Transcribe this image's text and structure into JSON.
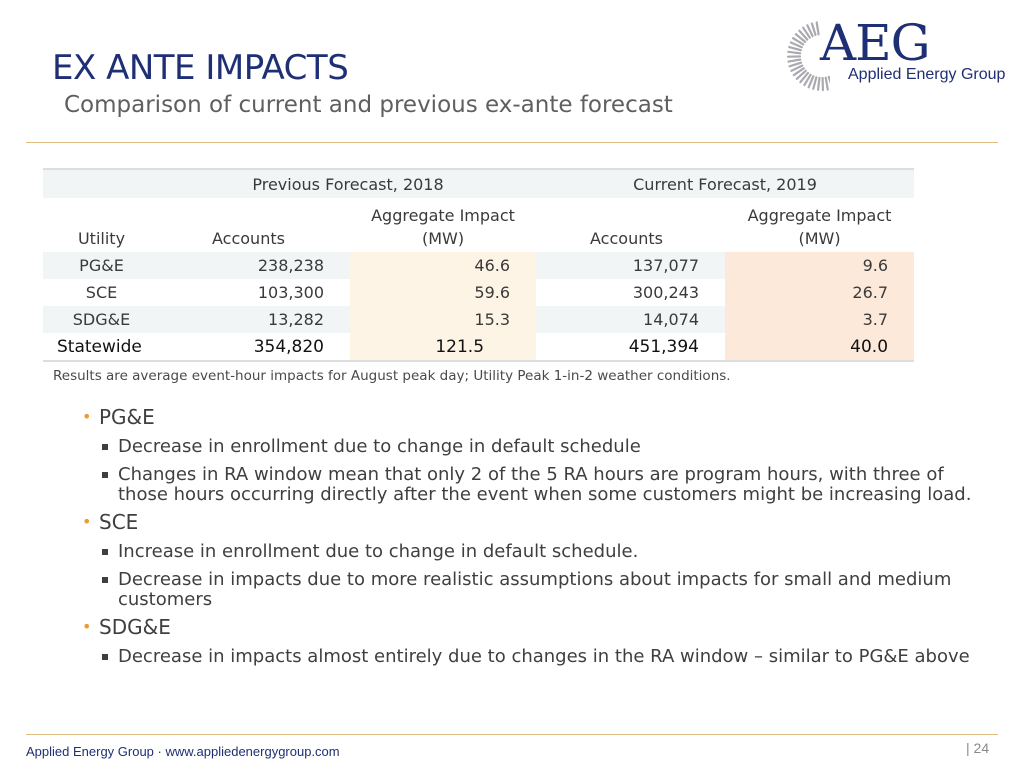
{
  "slide": {
    "title": "EX ANTE IMPACTS",
    "subtitle": "Comparison of current and previous ex-ante forecast"
  },
  "logo": {
    "letters": "AEG",
    "company": "Applied Energy Group",
    "colors": {
      "primary": "#1f2f75",
      "accent": "#a9aab0"
    }
  },
  "table": {
    "group_headers": [
      "Previous Forecast, 2018",
      "Current Forecast, 2019"
    ],
    "column_headers": {
      "utility": "Utility",
      "accounts_prev": "Accounts",
      "impact_prev_line1": "Aggregate Impact",
      "impact_prev_line2": "(MW)",
      "accounts_curr": "Accounts",
      "impact_curr_line1": "Aggregate Impact",
      "impact_curr_line2": "(MW)"
    },
    "rows": [
      {
        "utility": "PG&E",
        "accounts_prev": "238,238",
        "impact_prev": "46.6",
        "accounts_curr": "137,077",
        "impact_curr": "9.6"
      },
      {
        "utility": "SCE",
        "accounts_prev": "103,300",
        "impact_prev": "59.6",
        "accounts_curr": "300,243",
        "impact_curr": "26.7"
      },
      {
        "utility": "SDG&E",
        "accounts_prev": "13,282",
        "impact_prev": "15.3",
        "accounts_curr": "14,074",
        "impact_curr": "3.7"
      }
    ],
    "total": {
      "utility": "Statewide",
      "accounts_prev": "354,820",
      "impact_prev": "121.5",
      "accounts_curr": "451,394",
      "impact_curr": "40.0"
    },
    "colors": {
      "shade": "#f2f5f5",
      "impact_prev_fill": "#fef4e6",
      "impact_curr_fill": "#fde9da"
    }
  },
  "note": "Results are average event-hour impacts for August peak day; Utility Peak 1-in-2 weather conditions.",
  "bullets": [
    {
      "label": "PG&E",
      "subs": [
        "Decrease in enrollment due to change in default schedule",
        "Changes in RA window mean that only 2 of the 5 RA hours are program hours, with three of those hours occurring directly after the event when some customers might be increasing load."
      ]
    },
    {
      "label": "SCE",
      "subs": [
        "Increase in enrollment due to change in default schedule.",
        "Decrease in impacts due to more realistic assumptions about impacts for small and medium customers"
      ]
    },
    {
      "label": "SDG&E",
      "subs": [
        "Decrease in impacts almost entirely due to changes in the RA window – similar to PG&E above"
      ]
    }
  ],
  "footer": {
    "left": "Applied Energy Group · www.appliedenergygroup.com",
    "page": "| 24"
  },
  "accent_color": "#f19a2f"
}
